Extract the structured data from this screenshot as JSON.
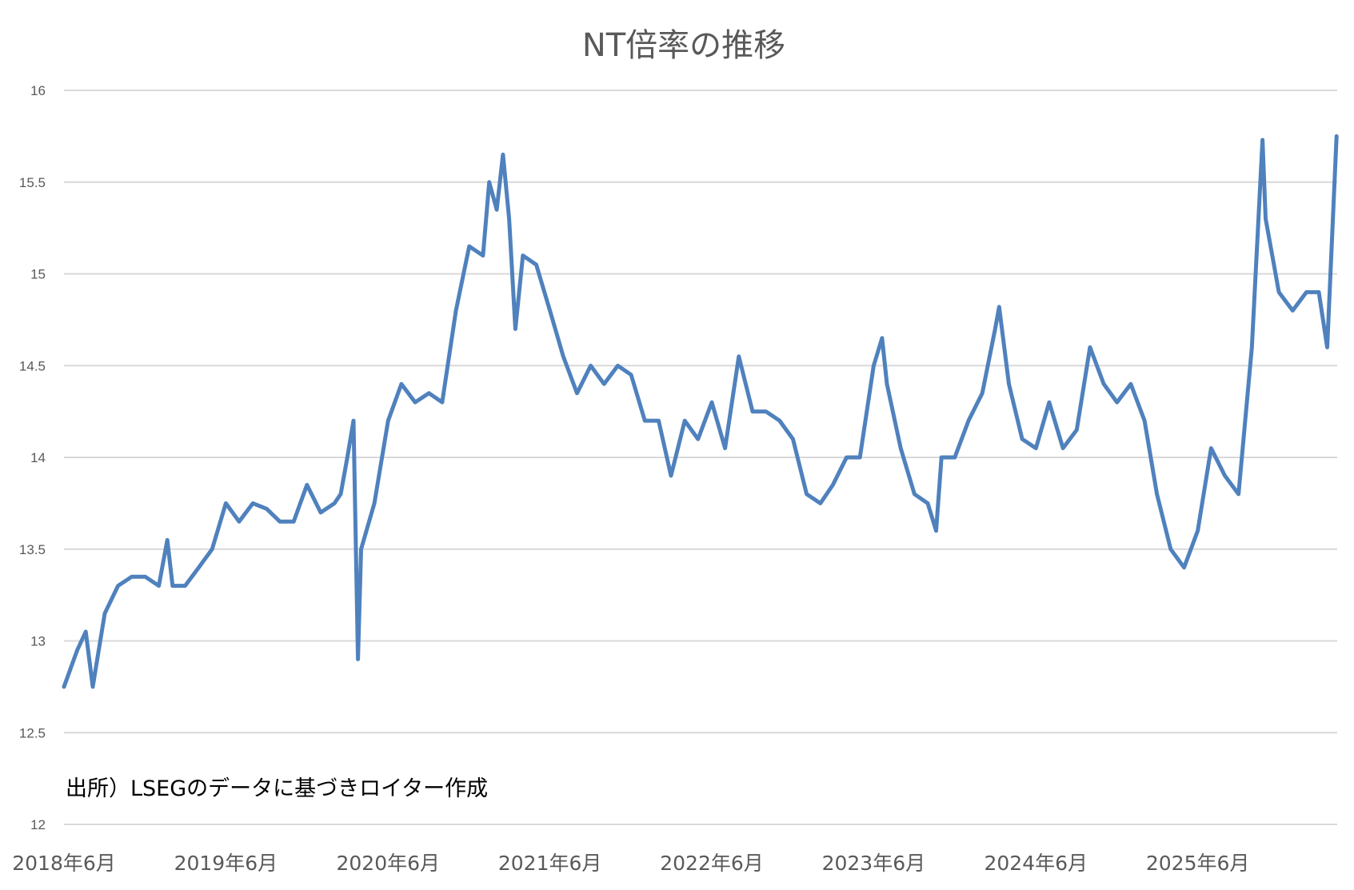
{
  "chart_data": {
    "type": "line",
    "title": "NT倍率の推移",
    "xlabel": "",
    "ylabel": "",
    "ylim": [
      12,
      16
    ],
    "yticks": [
      "12",
      "12.5",
      "13",
      "13.5",
      "14",
      "14.5",
      "15",
      "15.5",
      "16"
    ],
    "xticks": [
      "2018年6月",
      "2019年6月",
      "2020年6月",
      "2021年6月",
      "2022年6月",
      "2023年6月",
      "2024年6月",
      "2025年6月"
    ],
    "xtick_dates": [
      "2018-06-01",
      "2019-06-01",
      "2020-06-01",
      "2021-06-01",
      "2022-06-01",
      "2023-06-01",
      "2024-06-01",
      "2025-06-01"
    ],
    "grid": true,
    "legend": "none",
    "line_color": "#4f81bd",
    "annotation": "出所）LSEGのデータに基づきロイター作成",
    "series": [
      {
        "dates": [
          "2018-06-01",
          "2018-07-01",
          "2018-07-20",
          "2018-08-05",
          "2018-08-15",
          "2018-09-01",
          "2018-10-01",
          "2018-11-01",
          "2018-12-01",
          "2019-01-01",
          "2019-01-20",
          "2019-02-01",
          "2019-03-01",
          "2019-04-01",
          "2019-05-01",
          "2019-06-01",
          "2019-07-01",
          "2019-08-01",
          "2019-09-01",
          "2019-10-01",
          "2019-11-01",
          "2019-12-01",
          "2020-01-01",
          "2020-02-01",
          "2020-02-15",
          "2020-03-01",
          "2020-03-15",
          "2020-03-25",
          "2020-04-01",
          "2020-05-01",
          "2020-06-01",
          "2020-07-01",
          "2020-08-01",
          "2020-09-01",
          "2020-10-01",
          "2020-11-01",
          "2020-12-01",
          "2021-01-01",
          "2021-01-15",
          "2021-02-01",
          "2021-02-15",
          "2021-03-01",
          "2021-03-15",
          "2021-04-01",
          "2021-05-01",
          "2021-06-01",
          "2021-07-01",
          "2021-08-01",
          "2021-09-01",
          "2021-10-01",
          "2021-11-01",
          "2021-12-01",
          "2022-01-01",
          "2022-02-01",
          "2022-03-01",
          "2022-04-01",
          "2022-05-01",
          "2022-06-01",
          "2022-07-01",
          "2022-08-01",
          "2022-09-01",
          "2022-10-01",
          "2022-11-01",
          "2022-12-01",
          "2023-01-01",
          "2023-02-01",
          "2023-03-01",
          "2023-04-01",
          "2023-05-01",
          "2023-06-01",
          "2023-06-20",
          "2023-07-01",
          "2023-08-01",
          "2023-09-01",
          "2023-10-01",
          "2023-10-20",
          "2023-11-01",
          "2023-12-01",
          "2024-01-01",
          "2024-02-01",
          "2024-03-01",
          "2024-03-10",
          "2024-04-01",
          "2024-05-01",
          "2024-06-01",
          "2024-07-01",
          "2024-08-01",
          "2024-09-01",
          "2024-10-01",
          "2024-11-01",
          "2024-12-01",
          "2025-01-01",
          "2025-02-01",
          "2025-03-01",
          "2025-04-01",
          "2025-05-01",
          "2025-06-01",
          "2025-07-01",
          "2025-08-01",
          "2025-09-01",
          "2025-10-01",
          "2025-10-25",
          "2025-11-01",
          "2025-12-01",
          "2026-01-01",
          "2026-02-01",
          "2026-03-01",
          "2026-03-20",
          "2026-04-10"
        ],
        "values": [
          12.75,
          12.95,
          13.05,
          12.75,
          12.9,
          13.15,
          13.3,
          13.35,
          13.35,
          13.3,
          13.55,
          13.3,
          13.3,
          13.4,
          13.5,
          13.75,
          13.65,
          13.75,
          13.72,
          13.65,
          13.65,
          13.85,
          13.7,
          13.75,
          13.8,
          14.0,
          14.2,
          12.9,
          13.5,
          13.75,
          14.2,
          14.4,
          14.3,
          14.35,
          14.3,
          14.8,
          15.15,
          15.1,
          15.5,
          15.35,
          15.65,
          15.3,
          14.7,
          15.1,
          15.05,
          14.8,
          14.55,
          14.35,
          14.5,
          14.4,
          14.5,
          14.45,
          14.2,
          14.2,
          13.9,
          14.2,
          14.1,
          14.3,
          14.05,
          14.55,
          14.25,
          14.25,
          14.2,
          14.1,
          13.8,
          13.75,
          13.85,
          14.0,
          14.0,
          14.5,
          14.65,
          14.4,
          14.05,
          13.8,
          13.75,
          13.6,
          14.0,
          14.0,
          14.2,
          14.35,
          14.7,
          14.82,
          14.4,
          14.1,
          14.05,
          14.3,
          14.05,
          14.15,
          14.6,
          14.4,
          14.3,
          14.4,
          14.2,
          13.8,
          13.5,
          13.4,
          13.6,
          14.05,
          13.9,
          13.8,
          14.6,
          15.73,
          15.3,
          14.9,
          14.8,
          14.9,
          14.9,
          14.6,
          15.75
        ]
      }
    ]
  }
}
